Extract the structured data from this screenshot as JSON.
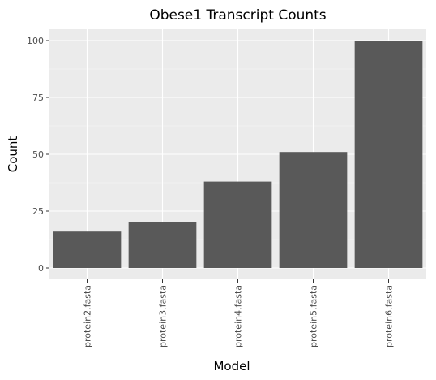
{
  "chart_data": {
    "type": "bar",
    "title": "Obese1 Transcript Counts",
    "xlabel": "Model",
    "ylabel": "Count",
    "categories": [
      "protein2.fasta",
      "protein3.fasta",
      "protein4.fasta",
      "protein5.fasta",
      "protein6.fasta"
    ],
    "values": [
      16,
      20,
      38,
      51,
      100
    ],
    "ylim": [
      -5,
      105
    ],
    "yticks": [
      0,
      25,
      50,
      75,
      100
    ],
    "ytick_labels": [
      "0",
      "25",
      "50",
      "75",
      "100"
    ],
    "grid": true,
    "legend": "none",
    "colors": {
      "bar": "#595959",
      "panel_background": "#ebebeb",
      "grid_major": "#ffffff",
      "grid_minor": "#f5f5f5",
      "tick_text": "#4d4d4d",
      "tick_mark": "#333333"
    }
  }
}
